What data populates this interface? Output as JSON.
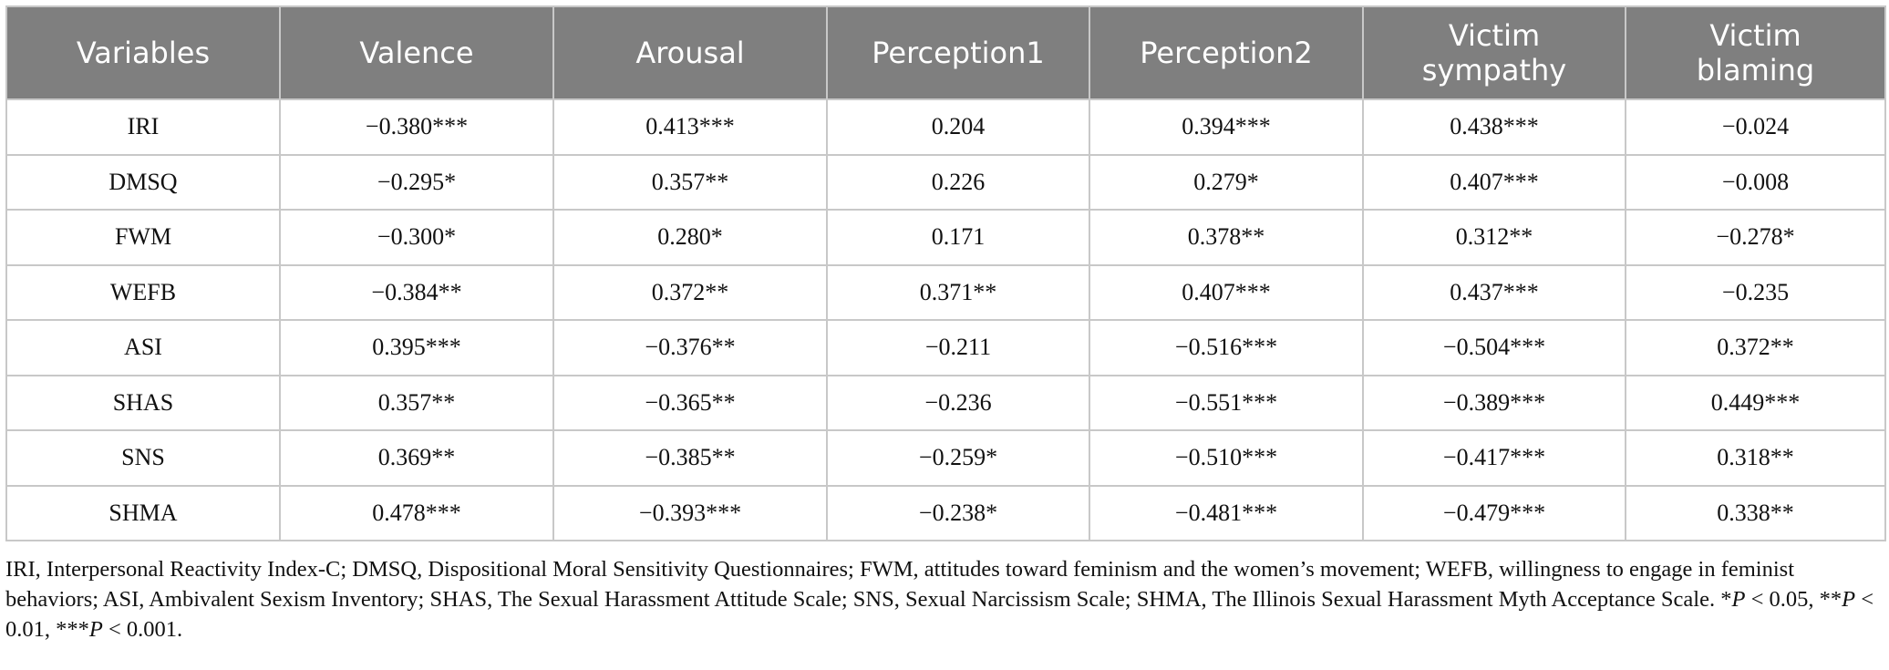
{
  "table": {
    "headers": [
      "Variables",
      "Valence",
      "Arousal",
      "Perception1",
      "Perception2",
      "Victim sympathy",
      "Victim blaming"
    ],
    "rows": [
      [
        "IRI",
        "−0.380***",
        "0.413***",
        "0.204",
        "0.394***",
        "0.438***",
        "−0.024"
      ],
      [
        "DMSQ",
        "−0.295*",
        "0.357**",
        "0.226",
        "0.279*",
        "0.407***",
        "−0.008"
      ],
      [
        "FWM",
        "−0.300*",
        "0.280*",
        "0.171",
        "0.378**",
        "0.312**",
        "−0.278*"
      ],
      [
        "WEFB",
        "−0.384**",
        "0.372**",
        "0.371**",
        "0.407***",
        "0.437***",
        "−0.235"
      ],
      [
        "ASI",
        "0.395***",
        "−0.376**",
        "−0.211",
        "−0.516***",
        "−0.504***",
        "0.372**"
      ],
      [
        "SHAS",
        "0.357**",
        "−0.365**",
        "−0.236",
        "−0.551***",
        "−0.389***",
        "0.449***"
      ],
      [
        "SNS",
        "0.369**",
        "−0.385**",
        "−0.259*",
        "−0.510***",
        "−0.417***",
        "0.318**"
      ],
      [
        "SHMA",
        "0.478***",
        "−0.393***",
        "−0.238*",
        "−0.481***",
        "−0.479***",
        "0.338**"
      ]
    ]
  },
  "note": {
    "text": "IRI, Interpersonal Reactivity Index-C; DMSQ, Dispositional Moral Sensitivity Questionnaires; FWM, attitudes toward feminism and the women’s movement; WEFB, willingness to engage in feminist behaviors; ASI, Ambivalent Sexism Inventory; SHAS, The Sexual Harassment Attitude Scale; SNS, Sexual Narcissism Scale; SHMA, The Illinois Sexual Harassment Myth Acceptance Scale.",
    "sig1_prefix": "*",
    "sig1_rest": " < 0.05, ",
    "sig2_prefix": "**",
    "sig2_rest": " < 0.01, ",
    "sig3_prefix": "***",
    "sig3_rest": " < 0.001.",
    "p_letter": "P"
  }
}
